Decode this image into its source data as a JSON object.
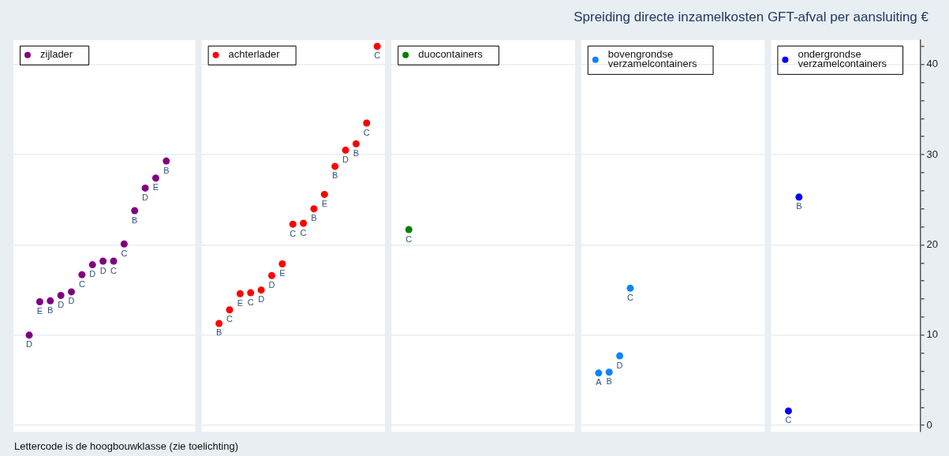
{
  "chart_data": {
    "type": "scatter",
    "title": "Spreiding directe inzamelkosten GFT-afval per aansluiting €",
    "annotations": [
      "Lettercode is de hoogbouwklasse (zie toelichting)"
    ],
    "categories": [
      null,
      null,
      null,
      null,
      null,
      null,
      null,
      null,
      null,
      null,
      null,
      null,
      null,
      null,
      null,
      null,
      null,
      null,
      null,
      null,
      null,
      null,
      null,
      null,
      null,
      null,
      null,
      null,
      null,
      null,
      null,
      null,
      null,
      null,
      null,
      null,
      null,
      null,
      null,
      null,
      null,
      null,
      null,
      null,
      null,
      null,
      null,
      null,
      null,
      null,
      null,
      null,
      null,
      null,
      null,
      null,
      null,
      null,
      null,
      null,
      null,
      null,
      null,
      null,
      null,
      null,
      null,
      null,
      null,
      null,
      null,
      null,
      null,
      null,
      null,
      null,
      null,
      null,
      null,
      null,
      null,
      null,
      null,
      null,
      null,
      null
    ],
    "series": [
      {
        "name": "zijlader",
        "color": "#800080",
        "values": [
          null,
          10.0,
          13.7,
          13.8,
          14.4,
          14.8,
          16.7,
          17.8,
          18.2,
          18.2,
          20.1,
          23.8,
          26.3,
          27.4,
          29.3,
          null,
          null,
          null,
          null,
          null,
          null,
          null,
          null,
          null,
          null,
          null,
          null,
          null,
          null,
          null,
          null,
          null,
          null,
          null,
          null,
          null,
          null,
          null,
          null,
          null,
          null,
          null,
          null,
          null,
          null,
          null,
          null,
          null,
          null,
          null,
          null,
          null,
          null,
          null,
          null,
          null,
          null,
          null,
          null,
          null,
          null,
          null,
          null,
          null,
          null,
          null,
          null,
          null,
          null,
          null,
          null,
          null,
          null,
          null,
          null,
          null,
          null,
          null,
          null,
          null,
          null,
          null,
          null,
          null,
          null,
          null
        ],
        "value_labels": [
          null,
          "D",
          "E",
          "B",
          "D",
          "D",
          "C",
          "D",
          "D",
          "C",
          "C",
          "B",
          "D",
          "E",
          "B",
          null,
          null,
          null,
          null,
          null,
          null,
          null,
          null,
          null,
          null,
          null,
          null,
          null,
          null,
          null,
          null,
          null,
          null,
          null,
          null,
          null,
          null,
          null,
          null,
          null,
          null,
          null,
          null,
          null,
          null,
          null,
          null,
          null,
          null,
          null,
          null,
          null,
          null,
          null,
          null,
          null,
          null,
          null,
          null,
          null,
          null,
          null,
          null,
          null,
          null,
          null,
          null,
          null,
          null,
          null,
          null,
          null,
          null,
          null,
          null,
          null,
          null,
          null,
          null,
          null,
          null,
          null,
          null,
          null,
          null,
          null
        ]
      },
      {
        "name": "achterlader",
        "color": "#ff0000",
        "values": [
          null,
          null,
          null,
          null,
          null,
          null,
          null,
          null,
          null,
          null,
          null,
          null,
          null,
          null,
          null,
          null,
          null,
          null,
          null,
          11.3,
          12.8,
          14.6,
          14.7,
          15.0,
          16.6,
          17.9,
          22.3,
          22.4,
          24.0,
          25.6,
          28.7,
          30.5,
          31.2,
          33.5,
          42.0,
          null,
          null,
          null,
          null,
          null,
          null,
          null,
          null,
          null,
          null,
          null,
          null,
          null,
          null,
          null,
          null,
          null,
          null,
          null,
          null,
          null,
          null,
          null,
          null,
          null,
          null,
          null,
          null,
          null,
          null,
          null,
          null,
          null,
          null,
          null,
          null,
          null,
          null,
          null,
          null,
          null,
          null,
          null,
          null,
          null,
          null,
          null,
          null,
          null,
          null,
          null
        ],
        "value_labels": [
          null,
          null,
          null,
          null,
          null,
          null,
          null,
          null,
          null,
          null,
          null,
          null,
          null,
          null,
          null,
          null,
          null,
          null,
          null,
          "B",
          "C",
          "E",
          "C",
          "D",
          "D",
          "E",
          "C",
          "C",
          "B",
          "E",
          "B",
          "D",
          "B",
          "C",
          "C",
          null,
          null,
          null,
          null,
          null,
          null,
          null,
          null,
          null,
          null,
          null,
          null,
          null,
          null,
          null,
          null,
          null,
          null,
          null,
          null,
          null,
          null,
          null,
          null,
          null,
          null,
          null,
          null,
          null,
          null,
          null,
          null,
          null,
          null,
          null,
          null,
          null,
          null,
          null,
          null,
          null,
          null,
          null,
          null,
          null,
          null,
          null,
          null,
          null,
          null,
          null
        ]
      },
      {
        "name": "duocontainers",
        "color": "#008000",
        "values": [
          null,
          null,
          null,
          null,
          null,
          null,
          null,
          null,
          null,
          null,
          null,
          null,
          null,
          null,
          null,
          null,
          null,
          null,
          null,
          null,
          null,
          null,
          null,
          null,
          null,
          null,
          null,
          null,
          null,
          null,
          null,
          null,
          null,
          null,
          null,
          null,
          null,
          21.7,
          null,
          null,
          null,
          null,
          null,
          null,
          null,
          null,
          null,
          null,
          null,
          null,
          null,
          null,
          null,
          null,
          null,
          null,
          null,
          null,
          null,
          null,
          null,
          null,
          null,
          null,
          null,
          null,
          null,
          null,
          null,
          null,
          null,
          null,
          null,
          null,
          null,
          null,
          null,
          null,
          null,
          null,
          null,
          null,
          null,
          null,
          null,
          null
        ],
        "value_labels": [
          null,
          null,
          null,
          null,
          null,
          null,
          null,
          null,
          null,
          null,
          null,
          null,
          null,
          null,
          null,
          null,
          null,
          null,
          null,
          null,
          null,
          null,
          null,
          null,
          null,
          null,
          null,
          null,
          null,
          null,
          null,
          null,
          null,
          null,
          null,
          null,
          null,
          "C",
          null,
          null,
          null,
          null,
          null,
          null,
          null,
          null,
          null,
          null,
          null,
          null,
          null,
          null,
          null,
          null,
          null,
          null,
          null,
          null,
          null,
          null,
          null,
          null,
          null,
          null,
          null,
          null,
          null,
          null,
          null,
          null,
          null,
          null,
          null,
          null,
          null,
          null,
          null,
          null,
          null,
          null,
          null,
          null,
          null,
          null,
          null,
          null
        ]
      },
      {
        "name": "bovengrondse verzamelcontainers",
        "color": "#0a84ff",
        "values": [
          null,
          null,
          null,
          null,
          null,
          null,
          null,
          null,
          null,
          null,
          null,
          null,
          null,
          null,
          null,
          null,
          null,
          null,
          null,
          null,
          null,
          null,
          null,
          null,
          null,
          null,
          null,
          null,
          null,
          null,
          null,
          null,
          null,
          null,
          null,
          null,
          null,
          null,
          null,
          null,
          null,
          null,
          null,
          null,
          null,
          null,
          null,
          null,
          null,
          null,
          null,
          null,
          null,
          null,
          null,
          5.8,
          5.9,
          7.7,
          15.2,
          null,
          null,
          null,
          null,
          null,
          null,
          null,
          null,
          null,
          null,
          null,
          null,
          null,
          null,
          null,
          null,
          null,
          null,
          null,
          null,
          null,
          null,
          null,
          null,
          null,
          null,
          null
        ],
        "value_labels": [
          null,
          null,
          null,
          null,
          null,
          null,
          null,
          null,
          null,
          null,
          null,
          null,
          null,
          null,
          null,
          null,
          null,
          null,
          null,
          null,
          null,
          null,
          null,
          null,
          null,
          null,
          null,
          null,
          null,
          null,
          null,
          null,
          null,
          null,
          null,
          null,
          null,
          null,
          null,
          null,
          null,
          null,
          null,
          null,
          null,
          null,
          null,
          null,
          null,
          null,
          null,
          null,
          null,
          null,
          null,
          "A",
          "B",
          "D",
          "C",
          null,
          null,
          null,
          null,
          null,
          null,
          null,
          null,
          null,
          null,
          null,
          null,
          null,
          null,
          null,
          null,
          null,
          null,
          null,
          null,
          null,
          null,
          null,
          null,
          null,
          null,
          null
        ]
      },
      {
        "name": "ondergrondse verzamelcontainers",
        "color": "#0000ff",
        "values": [
          null,
          null,
          null,
          null,
          null,
          null,
          null,
          null,
          null,
          null,
          null,
          null,
          null,
          null,
          null,
          null,
          null,
          null,
          null,
          null,
          null,
          null,
          null,
          null,
          null,
          null,
          null,
          null,
          null,
          null,
          null,
          null,
          null,
          null,
          null,
          null,
          null,
          null,
          null,
          null,
          null,
          null,
          null,
          null,
          null,
          null,
          null,
          null,
          null,
          null,
          null,
          null,
          null,
          null,
          null,
          null,
          null,
          null,
          null,
          null,
          null,
          null,
          null,
          null,
          null,
          null,
          null,
          null,
          null,
          null,
          null,
          null,
          null,
          1.6,
          25.3,
          null,
          null,
          null,
          null,
          null,
          null,
          null,
          null,
          null,
          null,
          null
        ],
        "value_labels": [
          null,
          null,
          null,
          null,
          null,
          null,
          null,
          null,
          null,
          null,
          null,
          null,
          null,
          null,
          null,
          null,
          null,
          null,
          null,
          null,
          null,
          null,
          null,
          null,
          null,
          null,
          null,
          null,
          null,
          null,
          null,
          null,
          null,
          null,
          null,
          null,
          null,
          null,
          null,
          null,
          null,
          null,
          null,
          null,
          null,
          null,
          null,
          null,
          null,
          null,
          null,
          null,
          null,
          null,
          null,
          null,
          null,
          null,
          null,
          null,
          null,
          null,
          null,
          null,
          null,
          null,
          null,
          null,
          null,
          null,
          null,
          null,
          null,
          "C",
          "B",
          null,
          null,
          null,
          null,
          null,
          null,
          null,
          null,
          null,
          null,
          null
        ]
      }
    ],
    "ylim": [
      -0.7,
      42.7
    ],
    "yticks": [
      0,
      {
        "value": 2,
        "label": null
      },
      {
        "value": 4,
        "label": null
      },
      {
        "value": 6,
        "label": null
      },
      {
        "value": 8,
        "label": null
      },
      10,
      {
        "value": 12,
        "label": null
      },
      {
        "value": 14,
        "label": null
      },
      {
        "value": 16,
        "label": null
      },
      {
        "value": 18,
        "label": null
      },
      20,
      {
        "value": 22,
        "label": null
      },
      {
        "value": 24,
        "label": null
      },
      {
        "value": 26,
        "label": null
      },
      {
        "value": 28,
        "label": null
      },
      30,
      {
        "value": 32,
        "label": null
      },
      {
        "value": 34,
        "label": null
      },
      {
        "value": 36,
        "label": null
      },
      {
        "value": 38,
        "label": null
      },
      40,
      {
        "value": 42,
        "label": null
      }
    ],
    "grid": "y",
    "legend": "top left",
    "tick_labels": "y",
    "marker": "circle"
  }
}
